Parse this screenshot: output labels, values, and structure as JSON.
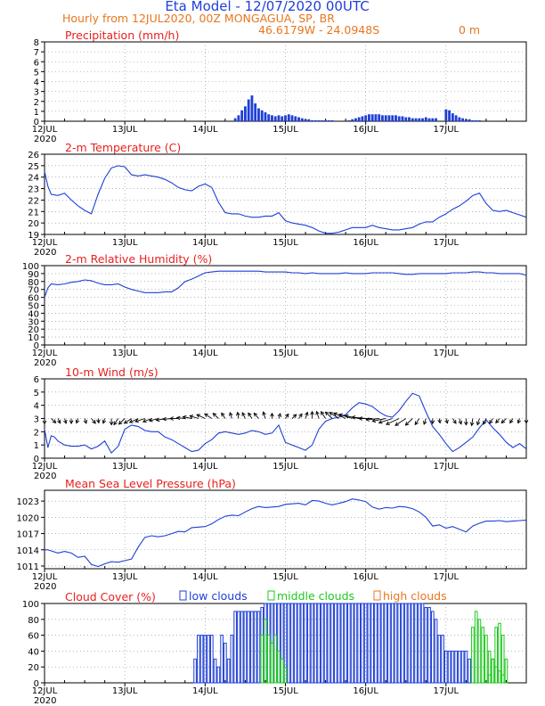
{
  "header": {
    "title": "Eta Model - 12/07/2020 00UTC",
    "subtitle": "Hourly from 12JUL2020, 00Z  MONGAGUA, SP, BR",
    "coords": "46.6179W - 24.0948S",
    "elevation": "0   m"
  },
  "colors": {
    "title": "#1f3fd6",
    "subtitle": "#e8761e",
    "panel_title": "#e8201e",
    "series": "#1f3fd6",
    "wind_arrow": "#000000",
    "low_clouds": "#1f3fd6",
    "middle_clouds": "#1ec81e",
    "high_clouds": "#e8761e",
    "grid": "#888888"
  },
  "date_ticks": [
    "12JUL",
    "13JUL",
    "14JUL",
    "15JUL",
    "16JUL",
    "17JUL"
  ],
  "year_label": "2020",
  "chart_data": [
    {
      "id": "precip",
      "type": "bar",
      "title": "Precipitation (mm/h)",
      "ylim": [
        0,
        8
      ],
      "yticks": [
        0,
        1,
        2,
        3,
        4,
        5,
        6,
        7,
        8
      ],
      "x_start_hour": 57,
      "step_hours": 1,
      "values": [
        0.3,
        0.6,
        1.1,
        1.5,
        2.2,
        2.6,
        1.8,
        1.3,
        1.1,
        0.9,
        0.7,
        0.6,
        0.5,
        0.6,
        0.5,
        0.6,
        0.7,
        0.6,
        0.5,
        0.4,
        0.3,
        0.2,
        0.2,
        0.1,
        0.1,
        0.1,
        0.1,
        0.1,
        0.1,
        0.1,
        0,
        0,
        0,
        0,
        0.1,
        0.2,
        0.3,
        0.4,
        0.5,
        0.6,
        0.7,
        0.7,
        0.7,
        0.7,
        0.6,
        0.6,
        0.6,
        0.6,
        0.6,
        0.5,
        0.5,
        0.4,
        0.4,
        0.3,
        0.3,
        0.3,
        0.3,
        0.4,
        0.3,
        0.3,
        0.3,
        0,
        0,
        1.2,
        1.1,
        0.8,
        0.6,
        0.4,
        0.3,
        0.2,
        0.2,
        0.1,
        0.1,
        0.1
      ]
    },
    {
      "id": "temp",
      "type": "line",
      "title": "2-m Temperature (C)",
      "ylim": [
        19,
        26
      ],
      "yticks": [
        19,
        20,
        21,
        22,
        23,
        24,
        25,
        26
      ],
      "x": [
        0,
        1,
        2,
        4,
        6,
        8,
        10,
        12,
        14,
        16,
        18,
        20,
        22,
        24,
        26,
        28,
        30,
        32,
        34,
        36,
        38,
        40,
        42,
        44,
        46,
        48,
        50,
        52,
        54,
        56,
        58,
        60,
        62,
        64,
        66,
        68,
        70,
        72,
        74,
        76,
        78,
        80,
        82,
        84,
        86,
        88,
        90,
        92,
        94,
        96,
        98,
        100,
        102,
        104,
        106,
        108,
        110,
        112,
        114,
        116,
        118,
        120,
        122,
        124,
        126,
        128,
        130,
        132,
        134,
        136,
        138,
        140,
        142,
        144
      ],
      "values": [
        24.5,
        23.2,
        22.5,
        22.4,
        22.6,
        22.0,
        21.5,
        21.1,
        20.8,
        22.5,
        23.9,
        24.8,
        25.0,
        24.9,
        24.2,
        24.1,
        24.2,
        24.1,
        24.0,
        23.8,
        23.5,
        23.1,
        22.9,
        22.8,
        23.2,
        23.4,
        23.1,
        21.8,
        20.9,
        20.8,
        20.8,
        20.6,
        20.5,
        20.5,
        20.6,
        20.6,
        20.9,
        20.2,
        20.0,
        19.9,
        19.8,
        19.6,
        19.3,
        19.1,
        19.1,
        19.2,
        19.4,
        19.6,
        19.6,
        19.6,
        19.8,
        19.6,
        19.5,
        19.4,
        19.4,
        19.5,
        19.6,
        19.9,
        20.1,
        20.1,
        20.5,
        20.8,
        21.2,
        21.5,
        21.9,
        22.4,
        22.6,
        21.7,
        21.1,
        21.0,
        21.1,
        20.9,
        20.7,
        20.5
      ]
    },
    {
      "id": "rh",
      "type": "line",
      "title": "2-m Relative Humidity (%)",
      "ylim": [
        0,
        100
      ],
      "yticks": [
        0,
        10,
        20,
        30,
        40,
        50,
        60,
        70,
        80,
        90,
        100
      ],
      "x": [
        0,
        1,
        2,
        4,
        6,
        8,
        10,
        12,
        14,
        16,
        18,
        20,
        22,
        24,
        26,
        28,
        30,
        32,
        34,
        36,
        38,
        40,
        42,
        44,
        46,
        48,
        50,
        52,
        54,
        56,
        58,
        60,
        62,
        64,
        66,
        68,
        70,
        72,
        74,
        76,
        78,
        80,
        82,
        84,
        86,
        88,
        90,
        92,
        94,
        96,
        98,
        100,
        102,
        104,
        106,
        108,
        110,
        112,
        114,
        116,
        118,
        120,
        122,
        124,
        126,
        128,
        130,
        132,
        134,
        136,
        138,
        140,
        142,
        144
      ],
      "values": [
        60,
        72,
        77,
        76,
        77,
        79,
        80,
        82,
        81,
        78,
        76,
        76,
        77,
        73,
        70,
        68,
        66,
        66,
        66,
        67,
        67,
        72,
        80,
        83,
        87,
        91,
        92,
        93,
        93,
        93,
        93,
        93,
        93,
        93,
        92,
        92,
        92,
        92,
        91,
        91,
        90,
        91,
        90,
        90,
        90,
        90,
        91,
        90,
        90,
        90,
        91,
        91,
        91,
        91,
        90,
        89,
        89,
        90,
        90,
        90,
        90,
        90,
        91,
        91,
        91,
        92,
        92,
        91,
        91,
        90,
        90,
        90,
        90,
        88
      ]
    },
    {
      "id": "wind",
      "type": "line",
      "title": "10-m Wind (m/s)",
      "ylim": [
        0,
        6
      ],
      "yticks": [
        0,
        1,
        2,
        3,
        4,
        5,
        6
      ],
      "x": [
        0,
        1,
        2,
        3,
        4,
        6,
        8,
        10,
        12,
        14,
        16,
        18,
        20,
        22,
        24,
        26,
        28,
        30,
        32,
        34,
        36,
        38,
        40,
        42,
        44,
        46,
        48,
        50,
        52,
        54,
        56,
        58,
        60,
        62,
        64,
        66,
        68,
        70,
        72,
        74,
        76,
        78,
        80,
        82,
        84,
        86,
        88,
        90,
        92,
        94,
        96,
        98,
        100,
        102,
        104,
        106,
        108,
        110,
        112,
        114,
        116,
        118,
        120,
        122,
        124,
        126,
        128,
        130,
        132,
        134,
        136,
        138,
        140,
        142,
        144
      ],
      "values": [
        2.2,
        0.8,
        1.7,
        1.6,
        1.3,
        1.0,
        0.9,
        0.9,
        1.0,
        0.7,
        0.9,
        1.3,
        0.4,
        0.9,
        2.2,
        2.5,
        2.4,
        2.1,
        2.0,
        2.0,
        1.6,
        1.4,
        1.1,
        0.8,
        0.5,
        0.6,
        1.1,
        1.4,
        1.9,
        2.0,
        1.9,
        1.8,
        1.9,
        2.1,
        2.0,
        1.8,
        1.9,
        2.5,
        1.2,
        1.0,
        0.8,
        0.6,
        1.0,
        2.2,
        2.8,
        3.0,
        3.1,
        3.3,
        3.8,
        4.2,
        4.1,
        3.9,
        3.5,
        3.2,
        3.1,
        3.6,
        4.3,
        4.9,
        4.7,
        3.5,
        2.4,
        1.8,
        1.1,
        0.5,
        0.8,
        1.2,
        1.6,
        2.3,
        2.9,
        2.3,
        1.8,
        1.2,
        0.8,
        1.1,
        0.7
      ],
      "arrow_dirs_deg": [
        180,
        150,
        165,
        170,
        180,
        190,
        170,
        155,
        175,
        190,
        180,
        200,
        210,
        220,
        230,
        240,
        235,
        245,
        250,
        260,
        270,
        280,
        290,
        300,
        310,
        320,
        330,
        340,
        350,
        355,
        345,
        340,
        335,
        350,
        360,
        10,
        20,
        30,
        20,
        10,
        0,
        350,
        340,
        330,
        320,
        310,
        300,
        290,
        280,
        270,
        260,
        250,
        240,
        230,
        220,
        210,
        200,
        190,
        180,
        175,
        170,
        160,
        170,
        180,
        185,
        190,
        195,
        200,
        205,
        210,
        200,
        190,
        180,
        185,
        190
      ]
    },
    {
      "id": "mslp",
      "type": "line",
      "title": "Mean Sea Level Pressure (hPa)",
      "ylim": [
        1010.5,
        1025
      ],
      "yticks": [
        1011,
        1014,
        1017,
        1020,
        1023
      ],
      "x": [
        0,
        1,
        2,
        4,
        6,
        8,
        10,
        12,
        14,
        16,
        18,
        20,
        22,
        24,
        26,
        28,
        30,
        32,
        34,
        36,
        38,
        40,
        42,
        44,
        46,
        48,
        50,
        52,
        54,
        56,
        58,
        60,
        62,
        64,
        66,
        68,
        70,
        72,
        74,
        76,
        78,
        80,
        82,
        84,
        86,
        88,
        90,
        92,
        94,
        96,
        98,
        100,
        102,
        104,
        106,
        108,
        110,
        112,
        114,
        116,
        118,
        120,
        122,
        124,
        126,
        128,
        130,
        132,
        134,
        136,
        138,
        140,
        142,
        144
      ],
      "values": [
        1014.0,
        1014.0,
        1013.8,
        1013.4,
        1013.7,
        1013.4,
        1012.6,
        1012.8,
        1011.3,
        1010.9,
        1011.4,
        1011.8,
        1011.7,
        1012.0,
        1012.3,
        1014.5,
        1016.3,
        1016.6,
        1016.4,
        1016.6,
        1017.0,
        1017.4,
        1017.3,
        1018.1,
        1018.2,
        1018.3,
        1018.8,
        1019.6,
        1020.2,
        1020.4,
        1020.3,
        1021.0,
        1021.6,
        1022.0,
        1021.8,
        1021.9,
        1022.0,
        1022.4,
        1022.5,
        1022.6,
        1022.3,
        1023.1,
        1023.0,
        1022.6,
        1022.3,
        1022.6,
        1022.9,
        1023.4,
        1023.2,
        1022.9,
        1021.9,
        1021.5,
        1021.8,
        1021.7,
        1022.0,
        1021.9,
        1021.6,
        1021.0,
        1020.0,
        1018.4,
        1018.6,
        1018.0,
        1018.3,
        1017.8,
        1017.3,
        1018.4,
        1018.9,
        1019.3,
        1019.3,
        1019.4,
        1019.2,
        1019.3,
        1019.4,
        1019.5
      ]
    },
    {
      "id": "cloud",
      "type": "bar",
      "title": "Cloud Cover (%)",
      "legend": [
        "low clouds",
        "middle clouds",
        "high clouds"
      ],
      "ylim": [
        0,
        100
      ],
      "yticks": [
        0,
        20,
        40,
        60,
        80,
        100
      ],
      "low": {
        "x_start_hour": 45,
        "values": [
          30,
          60,
          60,
          60,
          60,
          60,
          30,
          20,
          60,
          50,
          30,
          60,
          90,
          90,
          90,
          90,
          90,
          90,
          90,
          90,
          95,
          100,
          100,
          100,
          100,
          100,
          100,
          100,
          100,
          100,
          100,
          100,
          100,
          100,
          100,
          100,
          100,
          100,
          100,
          100,
          100,
          100,
          100,
          100,
          100,
          100,
          100,
          100,
          100,
          100,
          100,
          100,
          100,
          100,
          100,
          100,
          100,
          100,
          100,
          100,
          100,
          100,
          100,
          100,
          100,
          100,
          100,
          100,
          100,
          95,
          95,
          90,
          80,
          60,
          60,
          40,
          40,
          40,
          40,
          40,
          40,
          40,
          30
        ]
      },
      "middle": {
        "x_start_hour": 65,
        "values": [
          60,
          80,
          60,
          50,
          60,
          40,
          30,
          20,
          0,
          0,
          0,
          0,
          0,
          0,
          0,
          0,
          0,
          0,
          0,
          0,
          0,
          0,
          0,
          0,
          0,
          0,
          0,
          0,
          0,
          0,
          0,
          0,
          0,
          0,
          0,
          0,
          0,
          0,
          0,
          0,
          0,
          0,
          0,
          0,
          0,
          0,
          0,
          0,
          0,
          0,
          0,
          0,
          0,
          0,
          0,
          0,
          0,
          0,
          0,
          0,
          0,
          0,
          0,
          70,
          90,
          80,
          70,
          60,
          40,
          30,
          20,
          15,
          10
        ]
      },
      "middle_late": {
        "x_start_hour": 133,
        "values": [
          10,
          30,
          70,
          75,
          60,
          30
        ]
      }
    }
  ]
}
